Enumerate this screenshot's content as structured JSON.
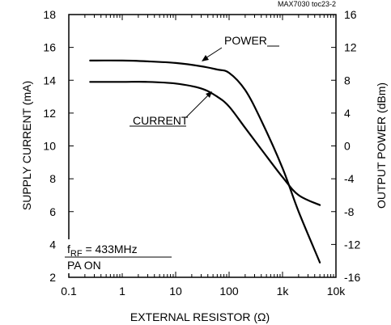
{
  "chart_data": {
    "type": "line",
    "note": "MAX7030 toc23-2",
    "xlabel": "EXTERNAL RESISTOR (Ω)",
    "ylabel_left": "SUPPLY CURRENT (mA)",
    "ylabel_right": "OUTPUT POWER (dBm)",
    "x_scale": "log",
    "xlim": [
      0.1,
      10000
    ],
    "ylim_left": [
      2,
      18
    ],
    "ylim_right": [
      -16,
      16
    ],
    "x_ticks": [
      0.1,
      1,
      10,
      100,
      1000,
      10000
    ],
    "x_tick_labels": [
      "0.1",
      "1",
      "10",
      "100",
      "1k",
      "10k"
    ],
    "y_left_ticks": [
      2,
      4,
      6,
      8,
      10,
      12,
      14,
      16,
      18
    ],
    "y_left_tick_labels": [
      "2",
      "4",
      "6",
      "8",
      "10",
      "12",
      "14",
      "16",
      "18"
    ],
    "y_right_ticks": [
      -16,
      -12,
      -8,
      -4,
      0,
      4,
      8,
      12,
      16
    ],
    "y_right_tick_labels": [
      "-16",
      "-12",
      "-8",
      "-4",
      "0",
      "4",
      "8",
      "12",
      "16"
    ],
    "grid": false,
    "series": [
      {
        "name": "POWER",
        "axis": "right",
        "x": [
          0.25,
          1,
          3,
          10,
          30,
          60,
          100,
          200,
          400,
          1000,
          2000,
          5000
        ],
        "y": [
          10.4,
          10.4,
          10.3,
          10.1,
          9.7,
          9.3,
          8.9,
          6.8,
          3.1,
          -2.7,
          -8.0,
          -14.2
        ]
      },
      {
        "name": "CURRENT",
        "axis": "left",
        "x": [
          0.25,
          1,
          3,
          10,
          30,
          60,
          100,
          200,
          400,
          1000,
          2000,
          5000
        ],
        "y": [
          13.9,
          13.9,
          13.9,
          13.8,
          13.5,
          13.0,
          12.4,
          11.1,
          9.8,
          8.1,
          7.0,
          6.4
        ]
      }
    ],
    "annotations": {
      "power_label": "POWER",
      "current_label": "CURRENT",
      "cond_line1_prefix": "f",
      "cond_line1_sub": "RF",
      "cond_line1_rest": " = 433MHz",
      "cond_line2": "PA ON"
    }
  }
}
